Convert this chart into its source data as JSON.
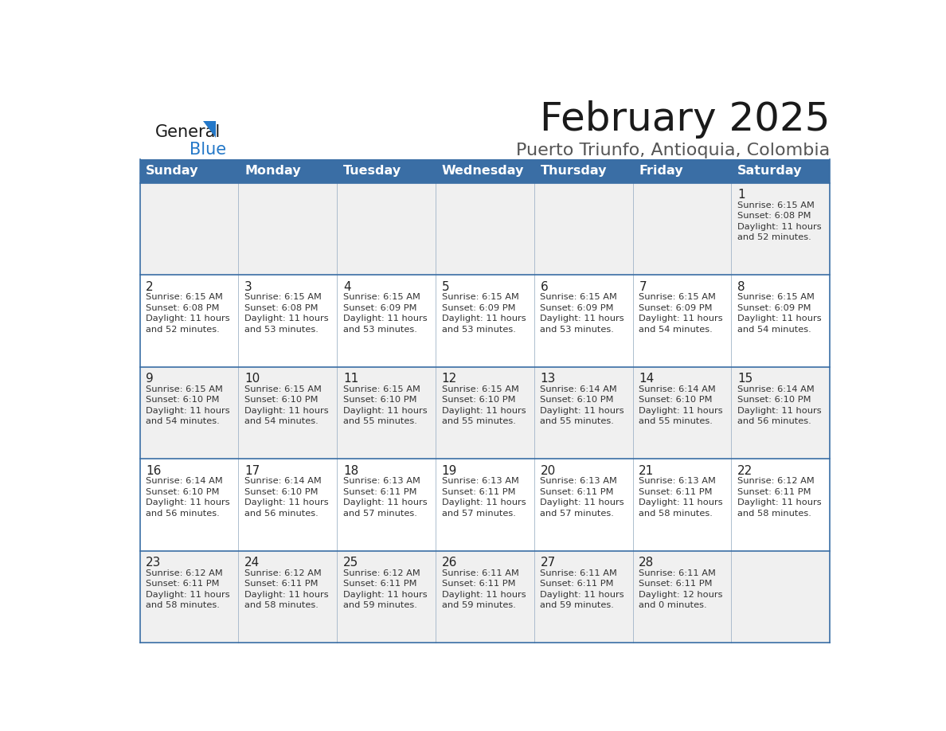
{
  "title": "February 2025",
  "subtitle": "Puerto Triunfo, Antioquia, Colombia",
  "header_color": "#3a6ea5",
  "header_text_color": "#ffffff",
  "cell_bg_white": "#ffffff",
  "cell_bg_grey": "#f0f0f0",
  "border_color": "#3a6ea5",
  "grid_color": "#a0b4c8",
  "day_headers": [
    "Sunday",
    "Monday",
    "Tuesday",
    "Wednesday",
    "Thursday",
    "Friday",
    "Saturday"
  ],
  "weeks": [
    [
      {
        "day": "",
        "info": ""
      },
      {
        "day": "",
        "info": ""
      },
      {
        "day": "",
        "info": ""
      },
      {
        "day": "",
        "info": ""
      },
      {
        "day": "",
        "info": ""
      },
      {
        "day": "",
        "info": ""
      },
      {
        "day": "1",
        "info": "Sunrise: 6:15 AM\nSunset: 6:08 PM\nDaylight: 11 hours\nand 52 minutes."
      }
    ],
    [
      {
        "day": "2",
        "info": "Sunrise: 6:15 AM\nSunset: 6:08 PM\nDaylight: 11 hours\nand 52 minutes."
      },
      {
        "day": "3",
        "info": "Sunrise: 6:15 AM\nSunset: 6:08 PM\nDaylight: 11 hours\nand 53 minutes."
      },
      {
        "day": "4",
        "info": "Sunrise: 6:15 AM\nSunset: 6:09 PM\nDaylight: 11 hours\nand 53 minutes."
      },
      {
        "day": "5",
        "info": "Sunrise: 6:15 AM\nSunset: 6:09 PM\nDaylight: 11 hours\nand 53 minutes."
      },
      {
        "day": "6",
        "info": "Sunrise: 6:15 AM\nSunset: 6:09 PM\nDaylight: 11 hours\nand 53 minutes."
      },
      {
        "day": "7",
        "info": "Sunrise: 6:15 AM\nSunset: 6:09 PM\nDaylight: 11 hours\nand 54 minutes."
      },
      {
        "day": "8",
        "info": "Sunrise: 6:15 AM\nSunset: 6:09 PM\nDaylight: 11 hours\nand 54 minutes."
      }
    ],
    [
      {
        "day": "9",
        "info": "Sunrise: 6:15 AM\nSunset: 6:10 PM\nDaylight: 11 hours\nand 54 minutes."
      },
      {
        "day": "10",
        "info": "Sunrise: 6:15 AM\nSunset: 6:10 PM\nDaylight: 11 hours\nand 54 minutes."
      },
      {
        "day": "11",
        "info": "Sunrise: 6:15 AM\nSunset: 6:10 PM\nDaylight: 11 hours\nand 55 minutes."
      },
      {
        "day": "12",
        "info": "Sunrise: 6:15 AM\nSunset: 6:10 PM\nDaylight: 11 hours\nand 55 minutes."
      },
      {
        "day": "13",
        "info": "Sunrise: 6:14 AM\nSunset: 6:10 PM\nDaylight: 11 hours\nand 55 minutes."
      },
      {
        "day": "14",
        "info": "Sunrise: 6:14 AM\nSunset: 6:10 PM\nDaylight: 11 hours\nand 55 minutes."
      },
      {
        "day": "15",
        "info": "Sunrise: 6:14 AM\nSunset: 6:10 PM\nDaylight: 11 hours\nand 56 minutes."
      }
    ],
    [
      {
        "day": "16",
        "info": "Sunrise: 6:14 AM\nSunset: 6:10 PM\nDaylight: 11 hours\nand 56 minutes."
      },
      {
        "day": "17",
        "info": "Sunrise: 6:14 AM\nSunset: 6:10 PM\nDaylight: 11 hours\nand 56 minutes."
      },
      {
        "day": "18",
        "info": "Sunrise: 6:13 AM\nSunset: 6:11 PM\nDaylight: 11 hours\nand 57 minutes."
      },
      {
        "day": "19",
        "info": "Sunrise: 6:13 AM\nSunset: 6:11 PM\nDaylight: 11 hours\nand 57 minutes."
      },
      {
        "day": "20",
        "info": "Sunrise: 6:13 AM\nSunset: 6:11 PM\nDaylight: 11 hours\nand 57 minutes."
      },
      {
        "day": "21",
        "info": "Sunrise: 6:13 AM\nSunset: 6:11 PM\nDaylight: 11 hours\nand 58 minutes."
      },
      {
        "day": "22",
        "info": "Sunrise: 6:12 AM\nSunset: 6:11 PM\nDaylight: 11 hours\nand 58 minutes."
      }
    ],
    [
      {
        "day": "23",
        "info": "Sunrise: 6:12 AM\nSunset: 6:11 PM\nDaylight: 11 hours\nand 58 minutes."
      },
      {
        "day": "24",
        "info": "Sunrise: 6:12 AM\nSunset: 6:11 PM\nDaylight: 11 hours\nand 58 minutes."
      },
      {
        "day": "25",
        "info": "Sunrise: 6:12 AM\nSunset: 6:11 PM\nDaylight: 11 hours\nand 59 minutes."
      },
      {
        "day": "26",
        "info": "Sunrise: 6:11 AM\nSunset: 6:11 PM\nDaylight: 11 hours\nand 59 minutes."
      },
      {
        "day": "27",
        "info": "Sunrise: 6:11 AM\nSunset: 6:11 PM\nDaylight: 11 hours\nand 59 minutes."
      },
      {
        "day": "28",
        "info": "Sunrise: 6:11 AM\nSunset: 6:11 PM\nDaylight: 12 hours\nand 0 minutes."
      },
      {
        "day": "",
        "info": ""
      }
    ]
  ],
  "logo_color_general": "#1a1a1a",
  "logo_color_blue": "#2478c8",
  "logo_triangle_color": "#2478c8",
  "title_color": "#1a1a1a",
  "subtitle_color": "#555555"
}
